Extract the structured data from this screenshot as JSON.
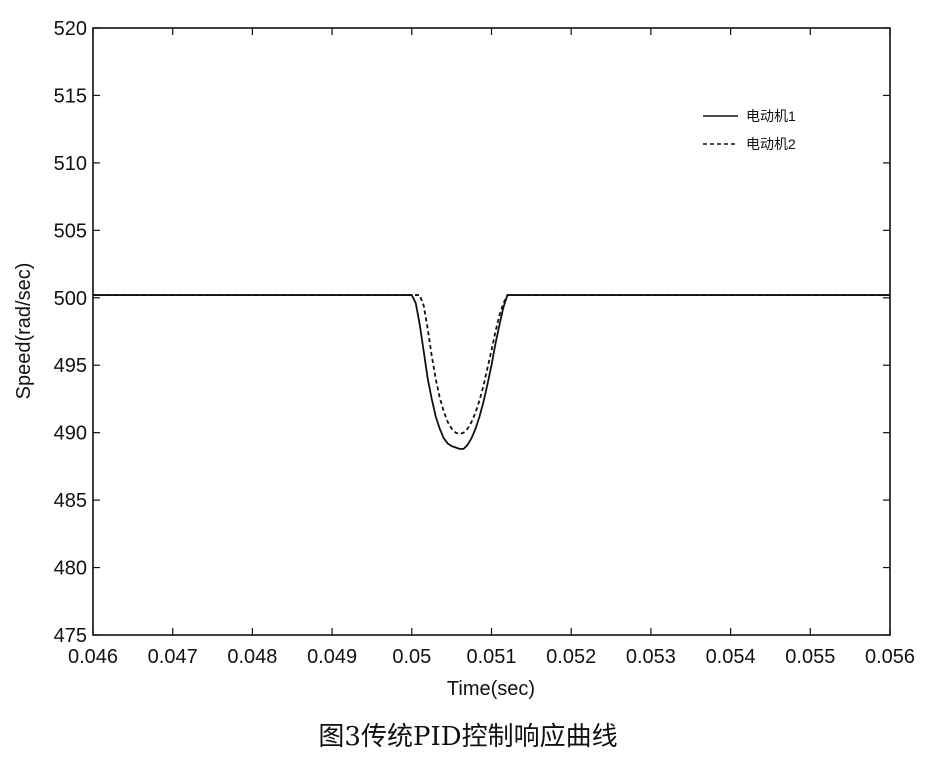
{
  "chart_data": {
    "type": "line",
    "title": "",
    "xlabel": "Time(sec)",
    "ylabel": "Speed(rad/sec)",
    "xlim": [
      0.046,
      0.056
    ],
    "ylim": [
      475,
      520
    ],
    "xticks": [
      0.046,
      0.047,
      0.048,
      0.049,
      0.05,
      0.051,
      0.052,
      0.053,
      0.054,
      0.055,
      0.056
    ],
    "xtick_labels": [
      "0.046",
      "0.047",
      "0.048",
      "0.049",
      "0.05",
      "0.051",
      "0.052",
      "0.053",
      "0.054",
      "0.055",
      "0.056"
    ],
    "yticks": [
      475,
      480,
      485,
      490,
      495,
      500,
      505,
      510,
      515,
      520
    ],
    "ytick_labels": [
      "475",
      "480",
      "485",
      "490",
      "495",
      "500",
      "505",
      "510",
      "515",
      "520"
    ],
    "grid": false,
    "legend_position": "top-right",
    "series": [
      {
        "name": "电动机1",
        "style": "solid",
        "color": "#111111",
        "x": [
          0.046,
          0.05,
          0.05005,
          0.0501,
          0.05015,
          0.0502,
          0.05025,
          0.0503,
          0.05035,
          0.0504,
          0.05045,
          0.0505,
          0.05055,
          0.0506,
          0.05065,
          0.0507,
          0.05075,
          0.0508,
          0.05085,
          0.0509,
          0.05095,
          0.051,
          0.05105,
          0.0511,
          0.05115,
          0.0512,
          0.056
        ],
        "y": [
          500.2,
          500.2,
          499.6,
          498.0,
          496.0,
          494.0,
          492.5,
          491.2,
          490.3,
          489.6,
          489.2,
          489.0,
          488.9,
          488.8,
          488.8,
          489.1,
          489.6,
          490.3,
          491.2,
          492.3,
          493.6,
          495.0,
          496.6,
          498.0,
          499.3,
          500.2,
          500.2
        ]
      },
      {
        "name": "电动机2",
        "style": "dashed",
        "color": "#111111",
        "x": [
          0.046,
          0.0501,
          0.05015,
          0.0502,
          0.05025,
          0.0503,
          0.05035,
          0.0504,
          0.05045,
          0.0505,
          0.05055,
          0.0506,
          0.05065,
          0.0507,
          0.05075,
          0.0508,
          0.05085,
          0.0509,
          0.05095,
          0.051,
          0.05105,
          0.0511,
          0.05115,
          0.0512,
          0.056
        ],
        "y": [
          500.2,
          500.2,
          499.4,
          497.7,
          495.7,
          494.0,
          492.6,
          491.6,
          490.8,
          490.3,
          490.0,
          489.9,
          490.0,
          490.3,
          490.8,
          491.5,
          492.4,
          493.5,
          494.8,
          496.1,
          497.5,
          498.7,
          499.6,
          500.2,
          500.2
        ]
      }
    ]
  },
  "caption": "图3传统PID控制响应曲线"
}
